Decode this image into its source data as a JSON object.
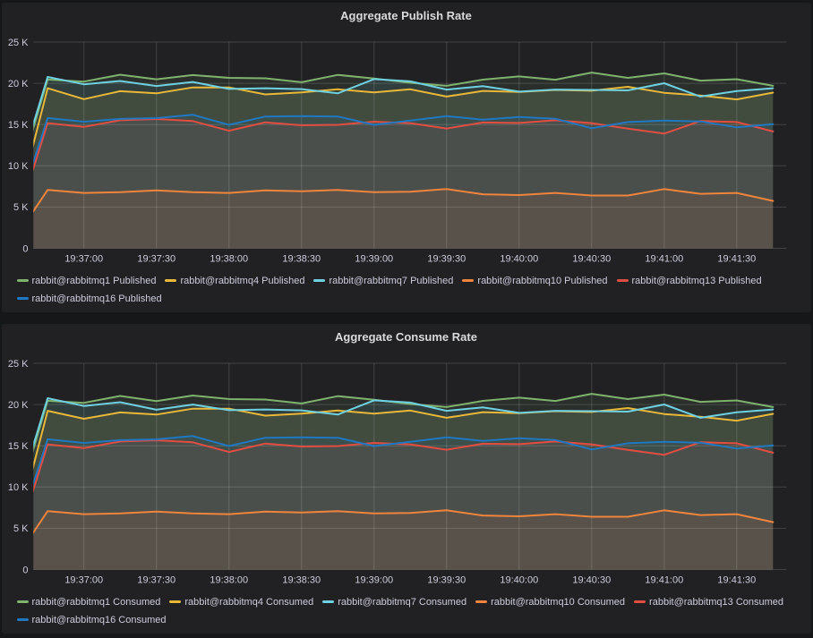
{
  "colors": {
    "page_background": "#161719",
    "panel_background": "#212124",
    "grid_line": "rgba(255,255,255,0.15)",
    "tick_text": "#ccccdc",
    "title_text": "#d8d9da"
  },
  "sample_times_sec": [
    0,
    15,
    30,
    45,
    60,
    75,
    90,
    105,
    120,
    135,
    150,
    165,
    180,
    195,
    210,
    225,
    240,
    255,
    270,
    285,
    300,
    315
  ],
  "chart_data": [
    {
      "type": "line",
      "title": "Aggregate Publish Rate",
      "xlabel": "",
      "ylabel": "",
      "grid": true,
      "legend_position": "bottom",
      "style": {
        "fill_opacity": 0.1,
        "line_width": 2
      },
      "y_axis": {
        "range": [
          0,
          25000
        ],
        "ticks": [
          {
            "value": 0,
            "label": "0"
          },
          {
            "value": 5000,
            "label": "5 K"
          },
          {
            "value": 10000,
            "label": "10 K"
          },
          {
            "value": 15000,
            "label": "15 K"
          },
          {
            "value": 20000,
            "label": "20 K"
          },
          {
            "value": 25000,
            "label": "25 K"
          }
        ]
      },
      "x_axis": {
        "window_sec": [
          9.1,
          320.5
        ],
        "tick_times_sec": [
          30,
          60,
          90,
          120,
          150,
          180,
          210,
          240,
          270,
          300
        ],
        "tick_labels": [
          "19:37:00",
          "19:37:30",
          "19:38:00",
          "19:38:30",
          "19:39:00",
          "19:39:30",
          "19:40:00",
          "19:40:30",
          "19:41:00",
          "19:41:30"
        ]
      },
      "series": [
        {
          "name": "rabbit@rabbitmq1 Published",
          "color": "#7EB26D",
          "values": [
            5500,
            20460,
            20210,
            21040,
            20490,
            21000,
            20660,
            20610,
            20130,
            21020,
            20590,
            20060,
            19700,
            20450,
            20840,
            20430,
            21300,
            20660,
            21200,
            20330,
            20500,
            19700
          ]
        },
        {
          "name": "rabbit@rabbitmq4 Published",
          "color": "#EAB839",
          "values": [
            2200,
            19400,
            18080,
            19050,
            18790,
            19500,
            19500,
            18660,
            18890,
            19270,
            18890,
            19270,
            18400,
            19080,
            18950,
            19200,
            19100,
            19580,
            18850,
            18530,
            18050,
            18870
          ]
        },
        {
          "name": "rabbit@rabbitmq7 Published",
          "color": "#6ED0E0",
          "values": [
            6300,
            20770,
            19880,
            20280,
            19680,
            20160,
            19320,
            19400,
            19300,
            18790,
            20510,
            20240,
            19240,
            19650,
            18990,
            19240,
            19200,
            19140,
            20010,
            18390,
            19070,
            19400
          ]
        },
        {
          "name": "rabbit@rabbitmq10 Published",
          "color": "#EF843C",
          "values": [
            500,
            7080,
            6710,
            6810,
            7020,
            6810,
            6710,
            7020,
            6920,
            7070,
            6810,
            6850,
            7180,
            6550,
            6450,
            6710,
            6400,
            6400,
            7180,
            6600,
            6710,
            5750
          ]
        },
        {
          "name": "rabbit@rabbitmq13 Published",
          "color": "#E24D42",
          "values": [
            1200,
            15170,
            14720,
            15520,
            15670,
            15420,
            14250,
            15270,
            14910,
            14970,
            15350,
            15170,
            14520,
            15250,
            15190,
            15520,
            15170,
            14510,
            13900,
            15430,
            15300,
            14160
          ]
        },
        {
          "name": "rabbit@rabbitmq16 Published",
          "color": "#1F78C1",
          "values": [
            2200,
            15790,
            15350,
            15680,
            15780,
            16180,
            14970,
            15980,
            16030,
            15980,
            14970,
            15480,
            16030,
            15600,
            15920,
            15710,
            14550,
            15300,
            15480,
            15380,
            14660,
            15040
          ]
        }
      ]
    },
    {
      "type": "line",
      "title": "Aggregate Consume Rate",
      "xlabel": "",
      "ylabel": "",
      "grid": true,
      "legend_position": "bottom",
      "style": {
        "fill_opacity": 0.1,
        "line_width": 2
      },
      "y_axis": {
        "range": [
          0,
          25000
        ],
        "ticks": [
          {
            "value": 0,
            "label": "0"
          },
          {
            "value": 5000,
            "label": "5 K"
          },
          {
            "value": 10000,
            "label": "10 K"
          },
          {
            "value": 15000,
            "label": "15 K"
          },
          {
            "value": 20000,
            "label": "20 K"
          },
          {
            "value": 25000,
            "label": "25 K"
          }
        ]
      },
      "x_axis": {
        "window_sec": [
          9.1,
          320.5
        ],
        "tick_times_sec": [
          30,
          60,
          90,
          120,
          150,
          180,
          210,
          240,
          270,
          300
        ],
        "tick_labels": [
          "19:37:00",
          "19:37:30",
          "19:38:00",
          "19:38:30",
          "19:39:00",
          "19:39:30",
          "19:40:00",
          "19:40:30",
          "19:41:00",
          "19:41:30"
        ]
      },
      "series": [
        {
          "name": "rabbit@rabbitmq1 Consumed",
          "color": "#7EB26D",
          "values": [
            5500,
            20460,
            20210,
            21040,
            20410,
            21100,
            20660,
            20610,
            20130,
            21020,
            20590,
            20060,
            19700,
            20450,
            20840,
            20430,
            21300,
            20660,
            21200,
            20330,
            20500,
            19700
          ]
        },
        {
          "name": "rabbit@rabbitmq4 Consumed",
          "color": "#EAB839",
          "values": [
            2200,
            19240,
            18280,
            19050,
            18790,
            19500,
            19500,
            18660,
            18890,
            19270,
            18890,
            19270,
            18400,
            19080,
            18950,
            19200,
            19100,
            19580,
            18850,
            18530,
            18050,
            18870
          ]
        },
        {
          "name": "rabbit@rabbitmq7 Consumed",
          "color": "#6ED0E0",
          "values": [
            6300,
            20770,
            19830,
            20280,
            19370,
            20000,
            19320,
            19400,
            19300,
            18790,
            20510,
            20240,
            19240,
            19650,
            18990,
            19240,
            19200,
            19140,
            20010,
            18390,
            19070,
            19400
          ]
        },
        {
          "name": "rabbit@rabbitmq10 Consumed",
          "color": "#EF843C",
          "values": [
            500,
            7080,
            6710,
            6810,
            7020,
            6810,
            6710,
            7020,
            6920,
            7070,
            6810,
            6850,
            7180,
            6550,
            6450,
            6710,
            6400,
            6400,
            7180,
            6600,
            6710,
            5750
          ]
        },
        {
          "name": "rabbit@rabbitmq13 Consumed",
          "color": "#E24D42",
          "values": [
            1200,
            15170,
            14720,
            15520,
            15670,
            15420,
            14250,
            15270,
            14910,
            14970,
            15350,
            15170,
            14520,
            15250,
            15190,
            15520,
            15170,
            14510,
            13900,
            15430,
            15300,
            14160
          ]
        },
        {
          "name": "rabbit@rabbitmq16 Consumed",
          "color": "#1F78C1",
          "values": [
            2200,
            15790,
            15350,
            15680,
            15780,
            16180,
            14970,
            15980,
            16030,
            15980,
            14970,
            15480,
            16030,
            15600,
            15920,
            15710,
            14550,
            15300,
            15480,
            15380,
            14660,
            15040
          ]
        }
      ]
    }
  ]
}
